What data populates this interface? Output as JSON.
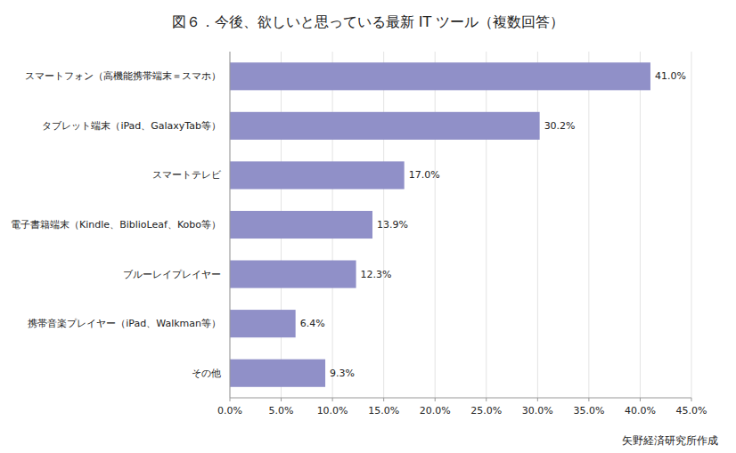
{
  "chart_data": {
    "type": "bar",
    "orientation": "horizontal",
    "title": "図６．今後、欲しいと思っている最新 IT ツール（複数回答）",
    "categories": [
      "その他",
      "携帯音楽プレイヤー（iPad、Walkman等）",
      "ブルーレイプレイヤー",
      "電子書籍端末（Kindle、BiblioLeaf、Kobo等）",
      "スマートテレビ",
      "タブレット端末（iPad、GalaxyTab等）",
      "スマートフォン（高機能携帯端末＝スマホ）"
    ],
    "values": [
      9.3,
      6.4,
      12.3,
      13.9,
      17.0,
      30.2,
      41.0
    ],
    "value_labels": [
      "9.3%",
      "6.4%",
      "12.3%",
      "13.9%",
      "17.0%",
      "30.2%",
      "41.0%"
    ],
    "data_labels": true,
    "color": "#9090c8",
    "xlim": [
      0,
      45
    ],
    "xticks": [
      {
        "value": 0,
        "label": "0.0%"
      },
      {
        "value": 5,
        "label": "5.0%"
      },
      {
        "value": 10,
        "label": "10.0%"
      },
      {
        "value": 15,
        "label": "15.0%"
      },
      {
        "value": 20,
        "label": "20.0%"
      },
      {
        "value": 25,
        "label": "25.0%"
      },
      {
        "value": 30,
        "label": "30.0%"
      },
      {
        "value": 35,
        "label": "35.0%"
      },
      {
        "value": 40,
        "label": "40.0%"
      },
      {
        "value": 45,
        "label": "45.0%"
      }
    ],
    "grid": true,
    "annotations": [
      "矢野経済研究所作成"
    ]
  }
}
